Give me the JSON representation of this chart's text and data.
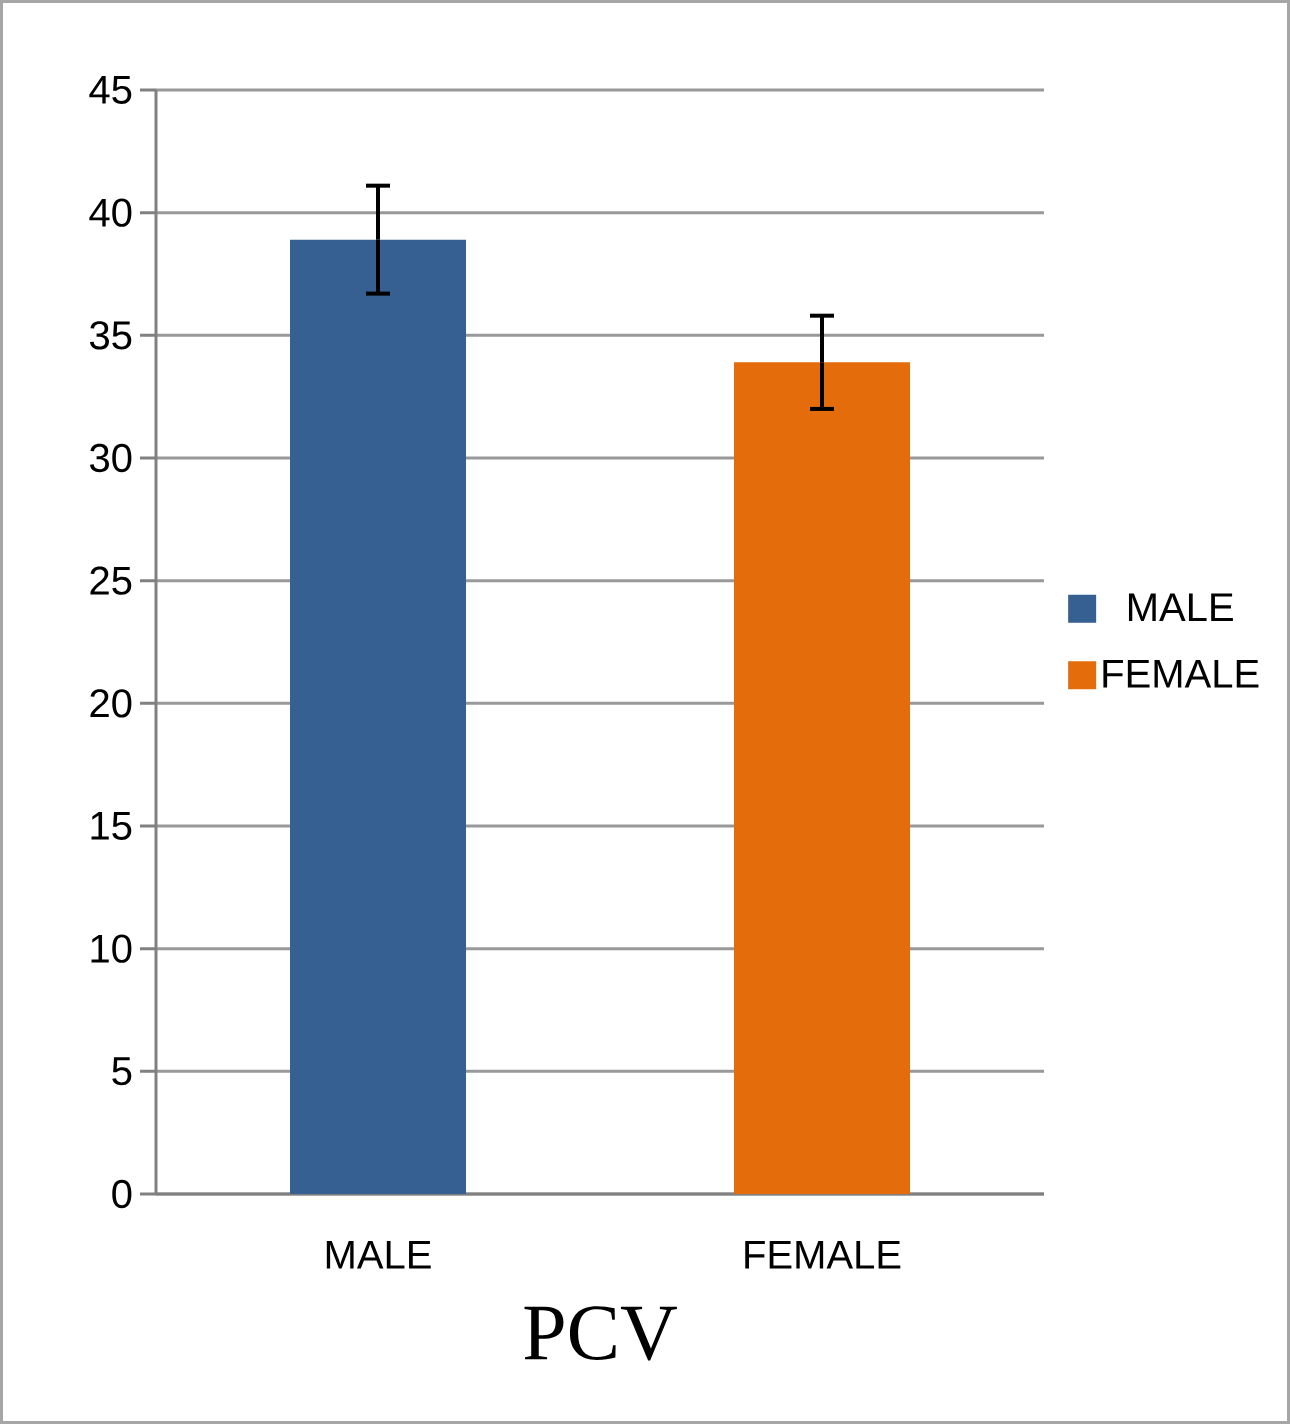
{
  "chart_data": {
    "type": "bar",
    "xlabel": "PCV",
    "categories": [
      "MALE",
      "FEMALE"
    ],
    "series": [
      {
        "name": "MALE",
        "color": "#376092",
        "values": [
          38.9,
          null
        ],
        "errors": [
          2.2,
          null
        ]
      },
      {
        "name": "FEMALE",
        "color": "#e46c0a",
        "values": [
          null,
          33.9
        ],
        "errors": [
          null,
          1.9
        ]
      }
    ],
    "ylim": [
      0,
      45
    ],
    "yticks": [
      0,
      5,
      10,
      15,
      20,
      25,
      30,
      35,
      40,
      45
    ],
    "grid": "y",
    "legend": "right"
  }
}
